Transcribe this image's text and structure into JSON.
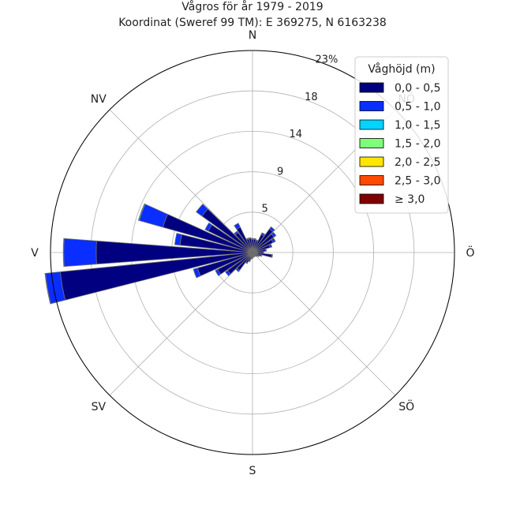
{
  "chart_data": {
    "type": "windrose",
    "title": "Vågros för år 1979 - 2019",
    "subtitle": "Koordinat (Sweref 99 TM): E 369275, N 6163238",
    "directions": [
      "N",
      "NÖ",
      "Ö",
      "SÖ",
      "S",
      "SV",
      "V",
      "NV"
    ],
    "ring_ticks": [
      "5",
      "9",
      "14",
      "18",
      "23%"
    ],
    "ring_values": [
      4.6,
      9.2,
      13.8,
      18.4,
      23.0
    ],
    "rmax": 23.0,
    "legend_title": "Våghöjd (m)",
    "legend_position": "top-right",
    "bins": [
      {
        "label": "0,0 - 0,5",
        "color": "#000080"
      },
      {
        "label": "0,5 - 1,0",
        "color": "#0a2eff"
      },
      {
        "label": "1,0 - 1,5",
        "color": "#00d4ff"
      },
      {
        "label": "1,5 - 2,0",
        "color": "#7dff7a"
      },
      {
        "label": "2,0 - 2,5",
        "color": "#ffe600"
      },
      {
        "label": "2,5 - 3,0",
        "color": "#ff4a00"
      },
      {
        "label": "≥ 3,0",
        "color": "#800000"
      }
    ],
    "sector_width_deg": 10,
    "sectors": [
      {
        "dir": 0,
        "values": [
          1.5,
          0.1,
          0,
          0,
          0,
          0,
          0
        ]
      },
      {
        "dir": 10,
        "values": [
          1.5,
          0.1,
          0,
          0,
          0,
          0,
          0
        ]
      },
      {
        "dir": 20,
        "values": [
          1.4,
          0.1,
          0,
          0,
          0,
          0,
          0
        ]
      },
      {
        "dir": 30,
        "values": [
          2.3,
          0.2,
          0,
          0,
          0,
          0,
          0
        ]
      },
      {
        "dir": 40,
        "values": [
          3.3,
          0.3,
          0,
          0,
          0,
          0,
          0
        ]
      },
      {
        "dir": 50,
        "values": [
          3.0,
          0.3,
          0,
          0,
          0,
          0,
          0
        ]
      },
      {
        "dir": 60,
        "values": [
          2.6,
          0.3,
          0,
          0,
          0,
          0,
          0
        ]
      },
      {
        "dir": 70,
        "values": [
          2.1,
          0.2,
          0,
          0,
          0,
          0,
          0
        ]
      },
      {
        "dir": 80,
        "values": [
          1.5,
          0.1,
          0,
          0,
          0,
          0,
          0
        ]
      },
      {
        "dir": 90,
        "values": [
          1.2,
          0.1,
          0,
          0,
          0,
          0,
          0
        ]
      },
      {
        "dir": 100,
        "values": [
          2.2,
          0.1,
          0,
          0,
          0,
          0,
          0
        ]
      },
      {
        "dir": 110,
        "values": [
          1.0,
          0.1,
          0,
          0,
          0,
          0,
          0
        ]
      },
      {
        "dir": 120,
        "values": [
          0.8,
          0.05,
          0,
          0,
          0,
          0,
          0
        ]
      },
      {
        "dir": 130,
        "values": [
          0.6,
          0.05,
          0,
          0,
          0,
          0,
          0
        ]
      },
      {
        "dir": 140,
        "values": [
          0.5,
          0.05,
          0,
          0,
          0,
          0,
          0
        ]
      },
      {
        "dir": 150,
        "values": [
          0.4,
          0.05,
          0,
          0,
          0,
          0,
          0
        ]
      },
      {
        "dir": 160,
        "values": [
          0.5,
          0.05,
          0,
          0,
          0,
          0,
          0
        ]
      },
      {
        "dir": 170,
        "values": [
          0.5,
          0.05,
          0,
          0,
          0,
          0,
          0
        ]
      },
      {
        "dir": 180,
        "values": [
          0.6,
          0.05,
          0,
          0,
          0,
          0,
          0
        ]
      },
      {
        "dir": 190,
        "values": [
          0.7,
          0.05,
          0,
          0,
          0,
          0,
          0
        ]
      },
      {
        "dir": 200,
        "values": [
          1.0,
          0.1,
          0,
          0,
          0,
          0,
          0
        ]
      },
      {
        "dir": 210,
        "values": [
          1.3,
          0.1,
          0,
          0,
          0,
          0,
          0
        ]
      },
      {
        "dir": 220,
        "values": [
          2.5,
          0.2,
          0,
          0,
          0,
          0,
          0
        ]
      },
      {
        "dir": 230,
        "values": [
          3.5,
          0.3,
          0,
          0,
          0,
          0,
          0
        ]
      },
      {
        "dir": 240,
        "values": [
          4.4,
          0.3,
          0,
          0,
          0,
          0,
          0
        ]
      },
      {
        "dir": 250,
        "values": [
          6.5,
          0.5,
          0,
          0,
          0,
          0,
          0
        ]
      },
      {
        "dir": 260,
        "values": [
          22.0,
          1.7,
          0.05,
          0,
          0,
          0,
          0
        ]
      },
      {
        "dir": 270,
        "values": [
          17.8,
          3.7,
          0.05,
          0,
          0,
          0,
          0
        ]
      },
      {
        "dir": 280,
        "values": [
          8.3,
          0.6,
          0,
          0,
          0,
          0,
          0
        ]
      },
      {
        "dir": 290,
        "values": [
          10.6,
          2.8,
          0.1,
          0,
          0,
          0,
          0
        ]
      },
      {
        "dir": 300,
        "values": [
          5.6,
          0.4,
          0,
          0,
          0,
          0,
          0
        ]
      },
      {
        "dir": 310,
        "values": [
          7.1,
          0.8,
          0,
          0,
          0,
          0,
          0
        ]
      },
      {
        "dir": 320,
        "values": [
          2.8,
          0.2,
          0,
          0,
          0,
          0,
          0
        ]
      },
      {
        "dir": 330,
        "values": [
          3.2,
          0.5,
          0,
          0,
          0,
          0,
          0
        ]
      },
      {
        "dir": 340,
        "values": [
          1.6,
          0.1,
          0,
          0,
          0,
          0,
          0
        ]
      },
      {
        "dir": 350,
        "values": [
          1.6,
          0.1,
          0,
          0,
          0,
          0,
          0
        ]
      }
    ]
  }
}
